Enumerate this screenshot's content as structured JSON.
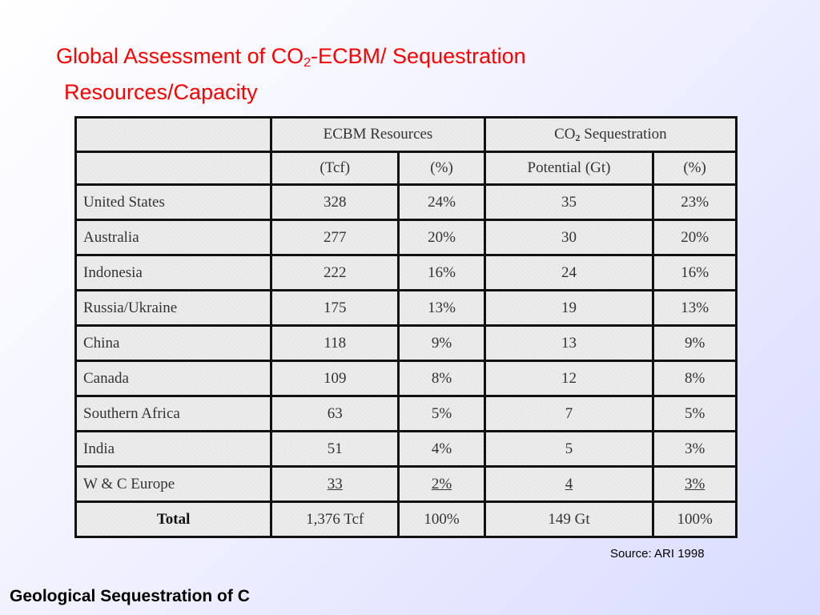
{
  "slide": {
    "title_part1": "Global Assessment of CO",
    "title_sub": "2",
    "title_part2": "-ECBM/ Sequestration",
    "title_line2": "Resources/Capacity",
    "source": "Source: ARI 1998",
    "footer": "Geological Sequestration of C",
    "title_color": "#ff0000"
  },
  "table": {
    "group_headers": {
      "ecbm": "ECBM Resources",
      "seq_prefix": "CO",
      "seq_sub": "2",
      "seq_suffix": " Sequestration"
    },
    "sub_headers": [
      "(Tcf)",
      "(%)",
      "Potential (Gt)",
      "(%)"
    ],
    "rows": [
      {
        "country": "United States",
        "tcf": "328",
        "tcf_pct": "24%",
        "gt": "35",
        "gt_pct": "23%"
      },
      {
        "country": "Australia",
        "tcf": "277",
        "tcf_pct": "20%",
        "gt": "30",
        "gt_pct": "20%"
      },
      {
        "country": "Indonesia",
        "tcf": "222",
        "tcf_pct": "16%",
        "gt": "24",
        "gt_pct": "16%"
      },
      {
        "country": "Russia/Ukraine",
        "tcf": "175",
        "tcf_pct": "13%",
        "gt": "19",
        "gt_pct": "13%"
      },
      {
        "country": "China",
        "tcf": "118",
        "tcf_pct": "9%",
        "gt": "13",
        "gt_pct": "9%"
      },
      {
        "country": "Canada",
        "tcf": "109",
        "tcf_pct": "8%",
        "gt": "12",
        "gt_pct": "8%"
      },
      {
        "country": "Southern Africa",
        "tcf": "63",
        "tcf_pct": "5%",
        "gt": "7",
        "gt_pct": "5%"
      },
      {
        "country": "India",
        "tcf": "51",
        "tcf_pct": "4%",
        "gt": "5",
        "gt_pct": "3%"
      },
      {
        "country": "W & C Europe",
        "tcf": "33",
        "tcf_pct": "2%",
        "gt": "4",
        "gt_pct": "3%"
      }
    ],
    "total": {
      "label": "Total",
      "tcf": "1,376 Tcf",
      "tcf_pct": "100%",
      "gt": "149 Gt",
      "gt_pct": "100%"
    }
  }
}
